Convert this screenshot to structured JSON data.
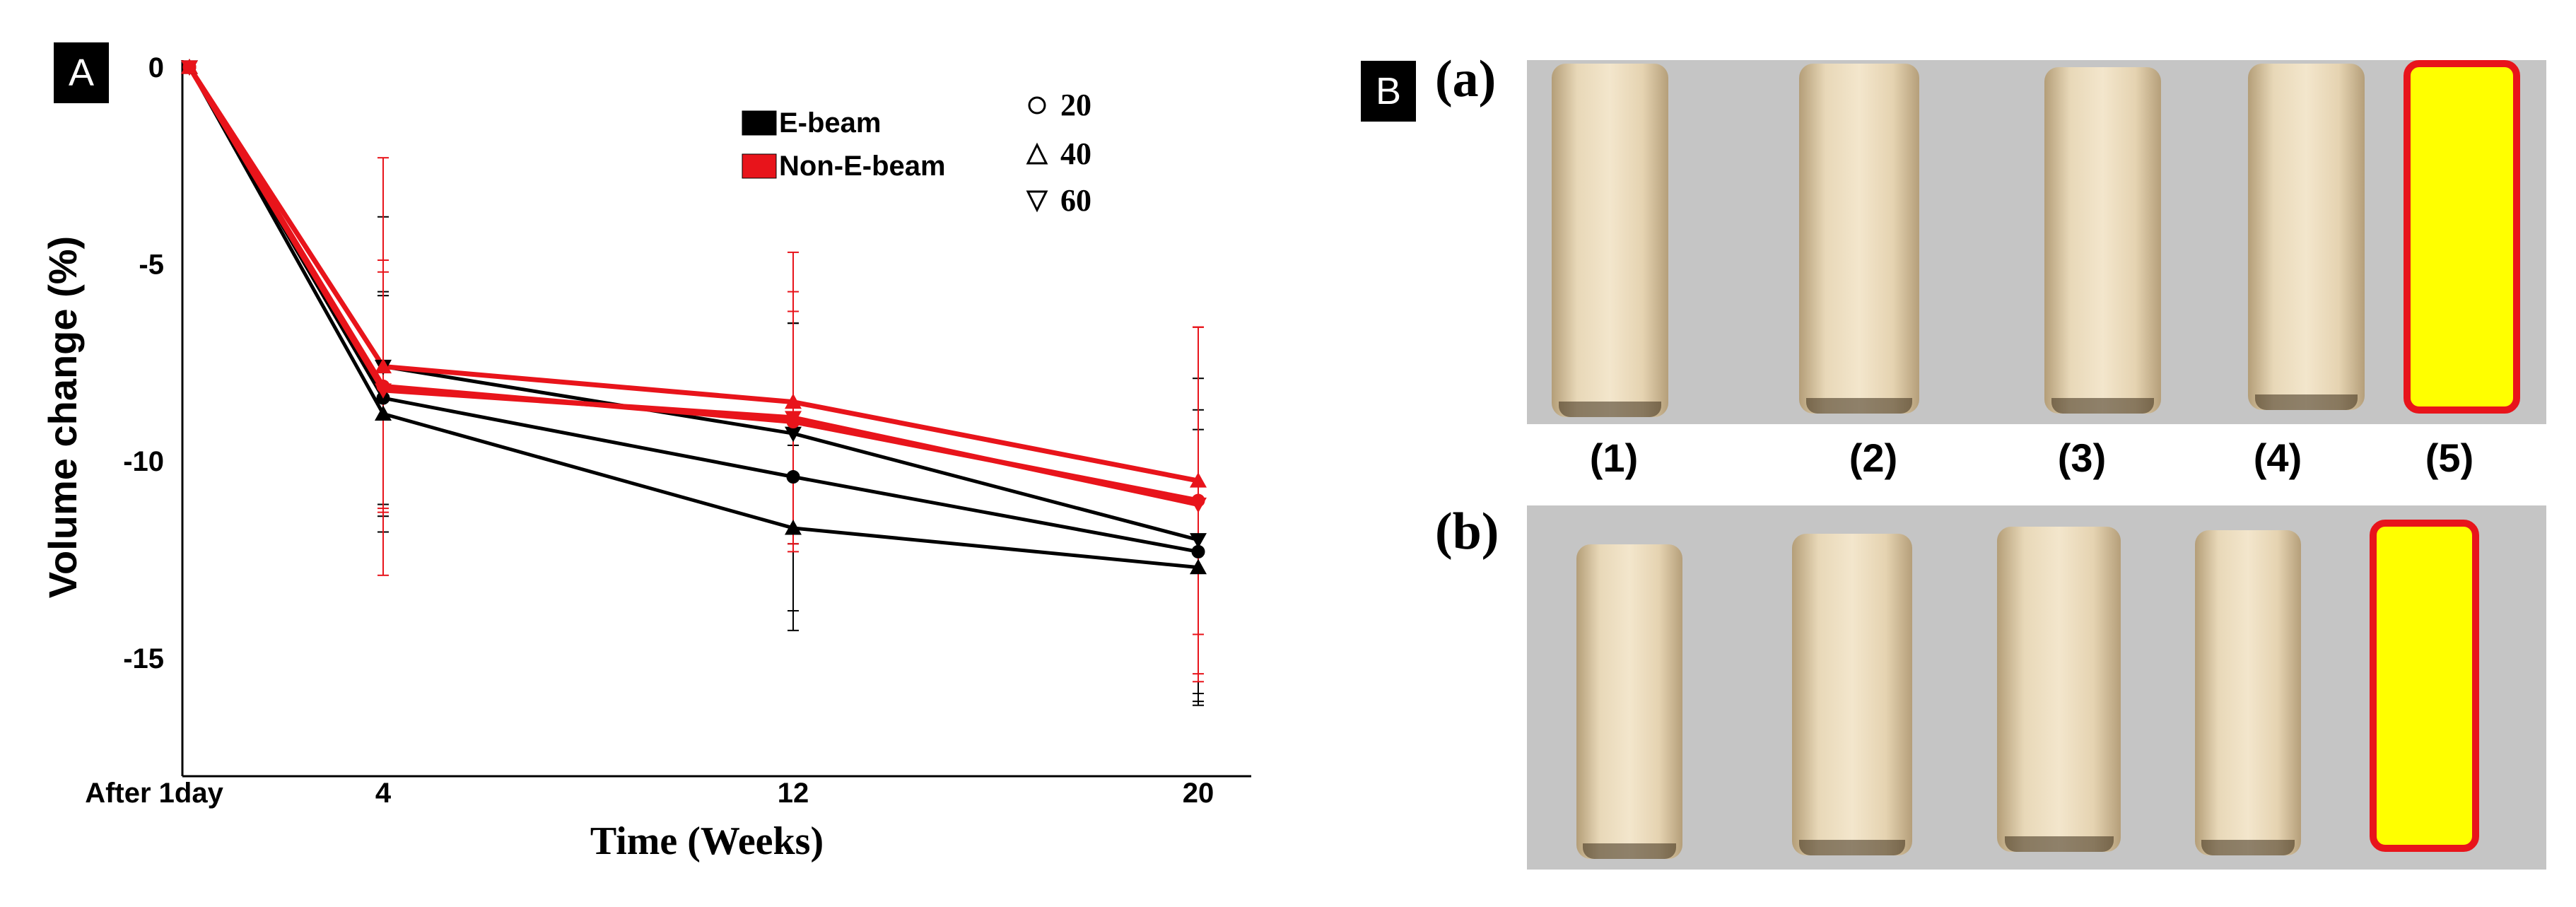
{
  "panel_labels": {
    "a": "A",
    "b": "B"
  },
  "chart_data": {
    "type": "line",
    "xlabel": "Time (Weeks)",
    "ylabel": "Volume change (%)",
    "categories": [
      "After 1day",
      "4",
      "12",
      "20"
    ],
    "yticks": [
      "0",
      "-5",
      "-10",
      "-15"
    ],
    "ylim": [
      -18,
      0
    ],
    "grid": false,
    "legend": {
      "groups": [
        {
          "label": "E-beam",
          "color": "#000000"
        },
        {
          "label": "Non-E-beam",
          "color": "#e8141b"
        }
      ],
      "markers": [
        {
          "symbol": "circle",
          "label": "20"
        },
        {
          "symbol": "triangle-up",
          "label": "40"
        },
        {
          "symbol": "triangle-down",
          "label": "60"
        }
      ],
      "placement": "top-right"
    },
    "series": [
      {
        "group": "E-beam",
        "marker": "circle",
        "color": "#000000",
        "values": [
          0,
          -8.4,
          -10.4,
          -12.3
        ],
        "error": [
          0,
          2.7,
          3.9,
          3.6
        ]
      },
      {
        "group": "E-beam",
        "marker": "triangle-up",
        "color": "#000000",
        "values": [
          0,
          -8.8,
          -11.7,
          -12.7
        ],
        "error": [
          0,
          3.0,
          2.1,
          3.5
        ]
      },
      {
        "group": "E-beam",
        "marker": "triangle-down",
        "color": "#000000",
        "values": [
          0,
          -7.6,
          -9.3,
          -12.0
        ],
        "error": [
          0,
          3.8,
          2.8,
          4.1
        ]
      },
      {
        "group": "Non-E-beam",
        "marker": "circle",
        "color": "#e8141b",
        "values": [
          0,
          -8.1,
          -9.0,
          -11.0
        ],
        "error": [
          0,
          3.2,
          2.8,
          4.4
        ]
      },
      {
        "group": "Non-E-beam",
        "marker": "triangle-up",
        "color": "#e8141b",
        "values": [
          0,
          -7.6,
          -8.5,
          -10.5
        ],
        "error": [
          0,
          5.3,
          3.8,
          3.9
        ]
      },
      {
        "group": "Non-E-beam",
        "marker": "triangle-down",
        "color": "#e8141b",
        "values": [
          0,
          -8.2,
          -8.9,
          -11.1
        ],
        "error": [
          0,
          3.0,
          3.2,
          4.5
        ]
      }
    ]
  },
  "figure_b": {
    "row_labels": [
      "(a)",
      "(b)"
    ],
    "specimen_labels": [
      "(1)",
      "(2)",
      "(3)",
      "(4)",
      "(5)"
    ],
    "colors": {
      "background": "#c5c5c5",
      "specimen": "#ecdcbc",
      "overlay_fill": "#ffff00",
      "overlay_edge": "#e8141b"
    }
  }
}
